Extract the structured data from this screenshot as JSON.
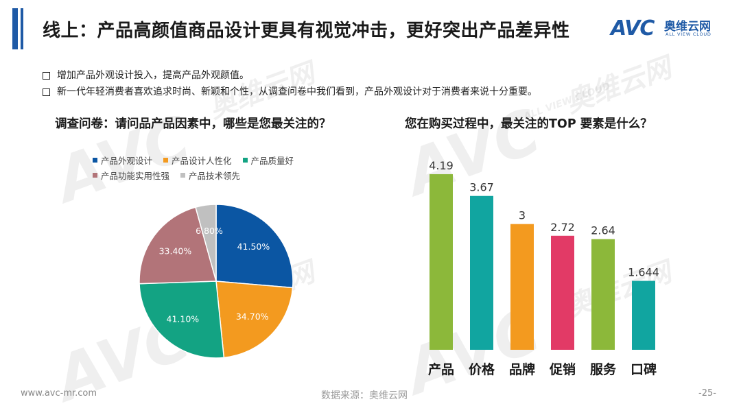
{
  "header": {
    "title": "线上：产品高颜值商品设计更具有视觉冲击，更好突出产品差异性",
    "logo_mark": "AVC",
    "logo_cn": "奥维云网",
    "logo_en": "ALL VIEW CLOUD"
  },
  "bullets": [
    "增加产品外观设计投入，提高产品外观颜值。",
    "新一代年轻消费者喜欢追求时尚、新颖和个性，从调查问卷中我们看到，产品外观设计对于消费者来说十分重要。"
  ],
  "left_panel": {
    "title": "调查问卷：请问品产品因素中，哪些是您最关注的？"
  },
  "right_panel": {
    "title": "您在购买过程中，最关注的TOP 要素是什么？"
  },
  "footer": {
    "website": "www.avc-mr.com",
    "source": "数据来源：奥维云网",
    "page": "-25-"
  },
  "watermark": {
    "brand": "AVC",
    "cn": "奥维云网",
    "en": "ALL VIEW CLOUD"
  },
  "chart_data": [
    {
      "type": "pie",
      "labels": [
        "产品外观设计",
        "产品设计人性化",
        "产品质量好",
        "产品功能实用性强",
        "产品技术领先"
      ],
      "values": [
        41.5,
        34.7,
        41.1,
        33.4,
        6.8
      ],
      "value_labels": [
        "41.50%",
        "34.70%",
        "41.10%",
        "33.40%",
        "6.80%"
      ],
      "colors": [
        "#0b56a3",
        "#f39a1f",
        "#13a383",
        "#b27479",
        "#c0c0c0"
      ],
      "legend_position": "top"
    },
    {
      "type": "bar",
      "categories": [
        "产品",
        "价格",
        "品牌",
        "促销",
        "服务",
        "口碑"
      ],
      "values": [
        4.19,
        3.67,
        3,
        2.72,
        2.64,
        1.644
      ],
      "value_labels": [
        "4.19",
        "3.67",
        "3",
        "2.72",
        "2.64",
        "1.644"
      ],
      "colors": [
        "#8cb83a",
        "#11a5a0",
        "#f39a1f",
        "#e23a66",
        "#8cb83a",
        "#11a5a0"
      ],
      "ylim": [
        0,
        4.5
      ],
      "grid": false
    }
  ]
}
